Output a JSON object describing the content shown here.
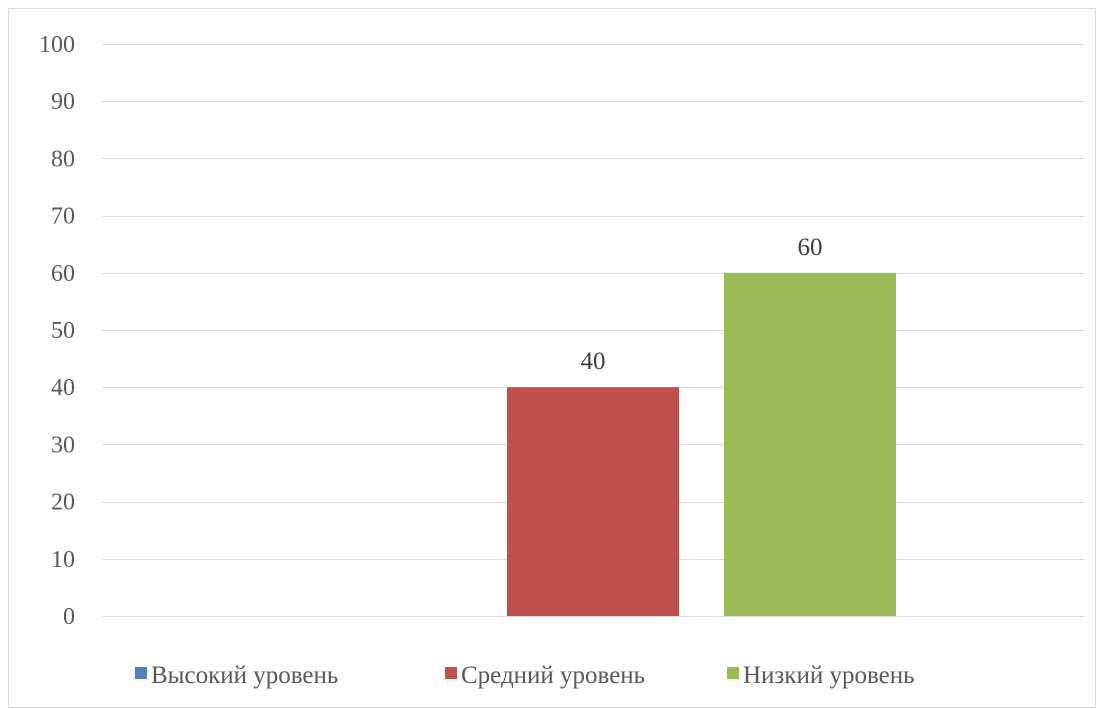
{
  "chart_data": {
    "type": "bar",
    "title": "",
    "xlabel": "",
    "ylabel": "",
    "ylim": [
      0,
      100
    ],
    "yticks": [
      0,
      10,
      20,
      30,
      40,
      50,
      60,
      70,
      80,
      90,
      100
    ],
    "grid": true,
    "legend_position": "bottom",
    "series": [
      {
        "name": "Высокий уровень",
        "value": 0,
        "color": "#4F81BD",
        "data_label": ""
      },
      {
        "name": "Средний уровень",
        "value": 40,
        "color": "#C0504D",
        "data_label": "40"
      },
      {
        "name": "Низкий уровень",
        "value": 60,
        "color": "#9BBB59",
        "data_label": "60"
      }
    ]
  }
}
